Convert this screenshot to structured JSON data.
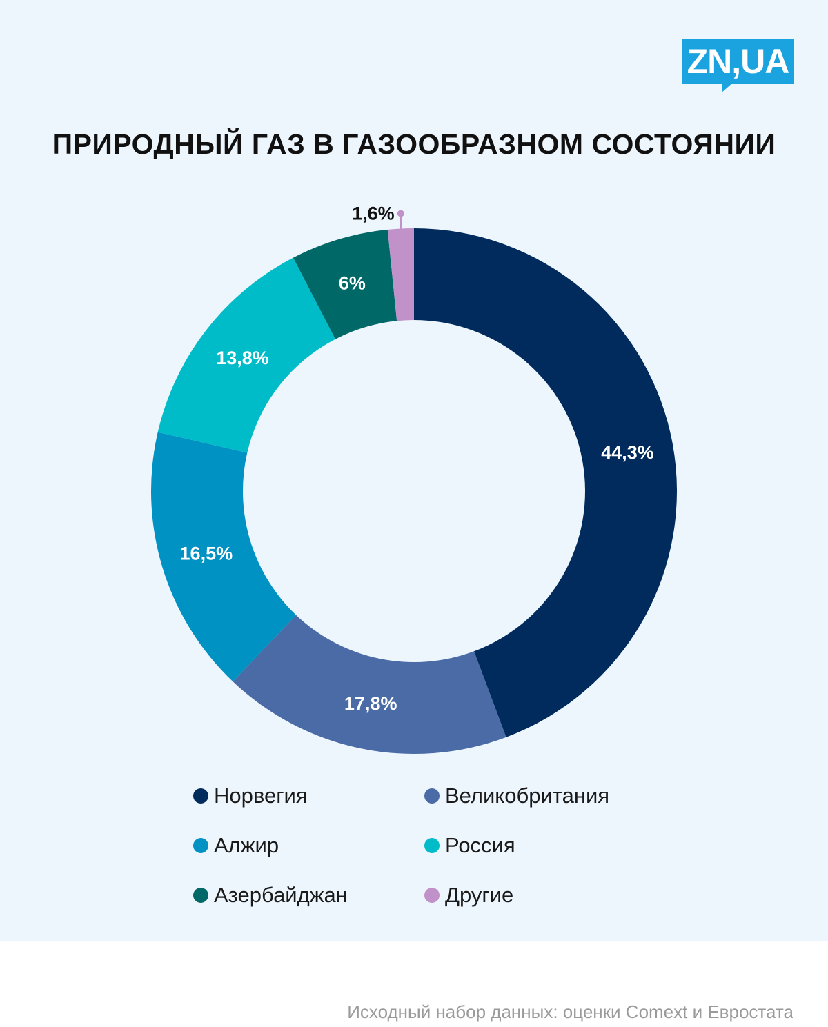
{
  "logo": {
    "text": "ZN,UA",
    "color": "#1aa3de"
  },
  "source_text": "Исходный набор данных: оценки Comext и Евростата",
  "colors": {
    "panel_bg": "#eef6fd"
  },
  "chart_data": {
    "type": "pie",
    "title": "ПРИРОДНЫЙ ГАЗ В ГАЗООБРАЗНОМ СОСТОЯНИИ",
    "legend_position": "bottom",
    "slices": [
      {
        "name": "Норвегия",
        "value": 44.3,
        "label": "44,3%",
        "color": "#012b5c"
      },
      {
        "name": "Великобритания",
        "value": 17.8,
        "label": "17,8%",
        "color": "#4a6ba5"
      },
      {
        "name": "Алжир",
        "value": 16.5,
        "label": "16,5%",
        "color": "#0092c2"
      },
      {
        "name": "Россия",
        "value": 13.8,
        "label": "13,8%",
        "color": "#00bcc8"
      },
      {
        "name": "Азербайджан",
        "value": 6,
        "label": "6%",
        "color": "#006866"
      },
      {
        "name": "Другие",
        "value": 1.6,
        "label": "1,6%",
        "color": "#c191c9"
      }
    ]
  }
}
